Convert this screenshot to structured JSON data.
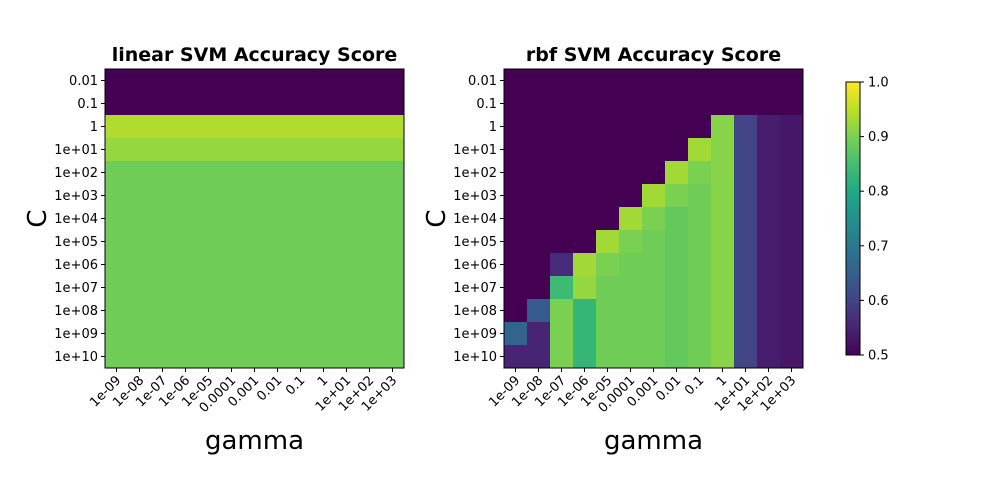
{
  "chart_data": [
    {
      "type": "heatmap",
      "title": "linear SVM Accuracy Score",
      "xlabel": "gamma",
      "ylabel": "C",
      "x_categories": [
        "1e-09",
        "1e-08",
        "1e-07",
        "1e-06",
        "1e-05",
        "0.0001",
        "0.001",
        "0.01",
        "0.1",
        "1",
        "1e+01",
        "1e+02",
        "1e+03"
      ],
      "y_categories": [
        "0.01",
        "0.1",
        "1",
        "1e+01",
        "1e+02",
        "1e+03",
        "1e+04",
        "1e+05",
        "1e+06",
        "1e+07",
        "1e+08",
        "1e+09",
        "1e+10"
      ],
      "values": [
        [
          0.5,
          0.5,
          0.5,
          0.5,
          0.5,
          0.5,
          0.5,
          0.5,
          0.5,
          0.5,
          0.5,
          0.5,
          0.5
        ],
        [
          0.5,
          0.5,
          0.5,
          0.5,
          0.5,
          0.5,
          0.5,
          0.5,
          0.5,
          0.5,
          0.5,
          0.5,
          0.5
        ],
        [
          0.94,
          0.94,
          0.94,
          0.94,
          0.94,
          0.94,
          0.94,
          0.94,
          0.94,
          0.94,
          0.94,
          0.94,
          0.94
        ],
        [
          0.92,
          0.92,
          0.92,
          0.92,
          0.92,
          0.92,
          0.92,
          0.92,
          0.92,
          0.92,
          0.92,
          0.92,
          0.92
        ],
        [
          0.89,
          0.89,
          0.89,
          0.89,
          0.89,
          0.89,
          0.89,
          0.89,
          0.89,
          0.89,
          0.89,
          0.89,
          0.89
        ],
        [
          0.89,
          0.89,
          0.89,
          0.89,
          0.89,
          0.89,
          0.89,
          0.89,
          0.89,
          0.89,
          0.89,
          0.89,
          0.89
        ],
        [
          0.89,
          0.89,
          0.89,
          0.89,
          0.89,
          0.89,
          0.89,
          0.89,
          0.89,
          0.89,
          0.89,
          0.89,
          0.89
        ],
        [
          0.89,
          0.89,
          0.89,
          0.89,
          0.89,
          0.89,
          0.89,
          0.89,
          0.89,
          0.89,
          0.89,
          0.89,
          0.89
        ],
        [
          0.89,
          0.89,
          0.89,
          0.89,
          0.89,
          0.89,
          0.89,
          0.89,
          0.89,
          0.89,
          0.89,
          0.89,
          0.89
        ],
        [
          0.89,
          0.89,
          0.89,
          0.89,
          0.89,
          0.89,
          0.89,
          0.89,
          0.89,
          0.89,
          0.89,
          0.89,
          0.89
        ],
        [
          0.89,
          0.89,
          0.89,
          0.89,
          0.89,
          0.89,
          0.89,
          0.89,
          0.89,
          0.89,
          0.89,
          0.89,
          0.89
        ],
        [
          0.89,
          0.89,
          0.89,
          0.89,
          0.89,
          0.89,
          0.89,
          0.89,
          0.89,
          0.89,
          0.89,
          0.89,
          0.89
        ],
        [
          0.89,
          0.89,
          0.89,
          0.89,
          0.89,
          0.89,
          0.89,
          0.89,
          0.89,
          0.89,
          0.89,
          0.89,
          0.89
        ]
      ],
      "vmin": 0.5,
      "vmax": 1.0,
      "colormap": "viridis"
    },
    {
      "type": "heatmap",
      "title": "rbf SVM Accuracy Score",
      "xlabel": "gamma",
      "ylabel": "C",
      "x_categories": [
        "1e-09",
        "1e-08",
        "1e-07",
        "1e-06",
        "1e-05",
        "0.0001",
        "0.001",
        "0.01",
        "0.1",
        "1",
        "1e+01",
        "1e+02",
        "1e+03"
      ],
      "y_categories": [
        "0.01",
        "0.1",
        "1",
        "1e+01",
        "1e+02",
        "1e+03",
        "1e+04",
        "1e+05",
        "1e+06",
        "1e+07",
        "1e+08",
        "1e+09",
        "1e+10"
      ],
      "values": [
        [
          0.5,
          0.5,
          0.5,
          0.5,
          0.5,
          0.5,
          0.5,
          0.5,
          0.5,
          0.5,
          0.5,
          0.5,
          0.5
        ],
        [
          0.5,
          0.5,
          0.5,
          0.5,
          0.5,
          0.5,
          0.5,
          0.5,
          0.5,
          0.5,
          0.5,
          0.5,
          0.5
        ],
        [
          0.5,
          0.5,
          0.5,
          0.5,
          0.5,
          0.5,
          0.5,
          0.5,
          0.5,
          0.91,
          0.6,
          0.54,
          0.53
        ],
        [
          0.5,
          0.5,
          0.5,
          0.5,
          0.5,
          0.5,
          0.5,
          0.5,
          0.93,
          0.91,
          0.6,
          0.54,
          0.53
        ],
        [
          0.5,
          0.5,
          0.5,
          0.5,
          0.5,
          0.5,
          0.5,
          0.93,
          0.9,
          0.91,
          0.6,
          0.54,
          0.53
        ],
        [
          0.5,
          0.5,
          0.5,
          0.5,
          0.5,
          0.5,
          0.93,
          0.9,
          0.89,
          0.91,
          0.6,
          0.54,
          0.53
        ],
        [
          0.5,
          0.5,
          0.5,
          0.5,
          0.5,
          0.93,
          0.9,
          0.88,
          0.89,
          0.91,
          0.6,
          0.54,
          0.53
        ],
        [
          0.5,
          0.5,
          0.5,
          0.5,
          0.93,
          0.9,
          0.89,
          0.88,
          0.89,
          0.91,
          0.6,
          0.54,
          0.53
        ],
        [
          0.5,
          0.5,
          0.56,
          0.93,
          0.9,
          0.89,
          0.89,
          0.88,
          0.89,
          0.91,
          0.6,
          0.54,
          0.53
        ],
        [
          0.5,
          0.5,
          0.84,
          0.92,
          0.89,
          0.89,
          0.89,
          0.88,
          0.89,
          0.91,
          0.6,
          0.54,
          0.53
        ],
        [
          0.5,
          0.64,
          0.9,
          0.83,
          0.89,
          0.89,
          0.89,
          0.88,
          0.89,
          0.91,
          0.6,
          0.54,
          0.53
        ],
        [
          0.66,
          0.55,
          0.9,
          0.83,
          0.89,
          0.89,
          0.89,
          0.88,
          0.89,
          0.91,
          0.6,
          0.54,
          0.53
        ],
        [
          0.55,
          0.55,
          0.9,
          0.83,
          0.89,
          0.89,
          0.89,
          0.88,
          0.89,
          0.91,
          0.6,
          0.54,
          0.53
        ]
      ],
      "vmin": 0.5,
      "vmax": 1.0,
      "colormap": "viridis"
    }
  ],
  "colorbar": {
    "ticks": [
      "0.5",
      "0.6",
      "0.7",
      "0.8",
      "0.9",
      "1.0"
    ],
    "tick_values": [
      0.5,
      0.6,
      0.7,
      0.8,
      0.9,
      1.0
    ],
    "vmin": 0.5,
    "vmax": 1.0
  }
}
